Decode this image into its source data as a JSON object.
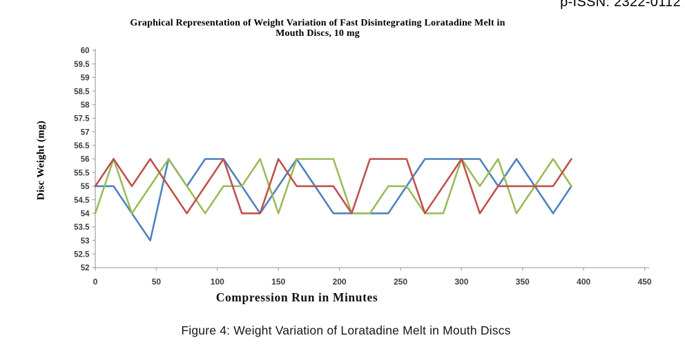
{
  "page": {
    "header_right": "p-ISSN: 2322-0112",
    "figure_caption": "Figure 4: Weight Variation of Loratadine Melt in Mouth Discs"
  },
  "chart_data": {
    "type": "line",
    "title": "Graphical Representation of Weight Variation of Fast Disintegrating Loratadine Melt in Mouth Discs, 10 mg",
    "title_lines": [
      "Graphical Representation of Weight Variation of Fast Disintegrating  Loratadine Melt in",
      "Mouth Discs, 10 mg"
    ],
    "xlabel": "Compression Run in Minutes",
    "ylabel": "Disc Weight (mg)",
    "xlim": [
      0,
      450
    ],
    "ylim": [
      52,
      60
    ],
    "xtick_step": 50,
    "ytick_step": 0.5,
    "grid": false,
    "legend": "none",
    "axis_color": "#a6a6a6",
    "tick_label_color": "#3d3d3d",
    "x": [
      0,
      15,
      30,
      45,
      60,
      75,
      90,
      105,
      120,
      135,
      150,
      165,
      180,
      195,
      210,
      225,
      240,
      255,
      270,
      285,
      300,
      315,
      330,
      345,
      360,
      375,
      390
    ],
    "series": [
      {
        "name": "blue",
        "color": "#4F81BD",
        "values": [
          55,
          55,
          54,
          53,
          56,
          55,
          56,
          56,
          55,
          54,
          55,
          56,
          55,
          54,
          54,
          54,
          54,
          55,
          56,
          56,
          56,
          56,
          55,
          56,
          55,
          54,
          55
        ]
      },
      {
        "name": "green",
        "color": "#9BBB59",
        "values": [
          54,
          56,
          54,
          55,
          56,
          55,
          54,
          55,
          55,
          56,
          54,
          56,
          56,
          56,
          54,
          54,
          55,
          55,
          54,
          54,
          56,
          55,
          56,
          54,
          55,
          56,
          55
        ]
      },
      {
        "name": "red",
        "color": "#C0504D",
        "values": [
          55,
          56,
          55,
          56,
          55,
          54,
          55,
          56,
          54,
          54,
          56,
          55,
          55,
          55,
          54,
          56,
          56,
          56,
          54,
          55,
          56,
          54,
          55,
          55,
          55,
          55,
          56
        ]
      }
    ]
  }
}
